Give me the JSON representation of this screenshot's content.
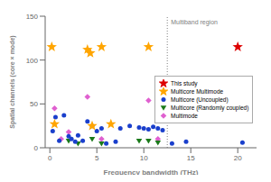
{
  "chart_data": {
    "type": "scatter",
    "xlabel": "Frequency bandwidth (THz)",
    "ylabel": "Spatial channels (core × mode)",
    "xlim": [
      -0.5,
      22
    ],
    "ylim": [
      0,
      150
    ],
    "xticks": [
      0,
      5,
      10,
      15,
      20
    ],
    "yticks": [
      0,
      50,
      100,
      150
    ],
    "grid": false,
    "legend": "right",
    "annotations": [
      {
        "type": "vline",
        "x": 12.5,
        "text": "Multiband region",
        "line_style": "dotted"
      }
    ],
    "series": [
      {
        "name": "This study",
        "color": "#dd0000",
        "marker": "star",
        "x": [
          20
        ],
        "y": [
          115
        ]
      },
      {
        "name": "Multicore Multimode",
        "color": "#ffa500",
        "marker": "star",
        "x": [
          0.2,
          4.0,
          4.3,
          5.5,
          10.5,
          0.5,
          4.5,
          6.5
        ],
        "y": [
          115,
          112,
          108,
          115,
          115,
          27,
          25,
          27
        ]
      },
      {
        "name": "Multicore (Uncoupled)",
        "color": "#1a3fcc",
        "marker": "circle",
        "x": [
          0.3,
          0.6,
          1.0,
          1.5,
          2.0,
          2.3,
          2.7,
          3.0,
          3.5,
          4.0,
          4.5,
          5.0,
          5.5,
          6.0,
          7.0,
          7.5,
          8.5,
          9.5,
          10.0,
          10.5,
          11.0,
          11.5,
          12.0,
          13.0,
          14.5,
          20.5
        ],
        "y": [
          19,
          35,
          8,
          37,
          13,
          10,
          7,
          14,
          8,
          30,
          25,
          19,
          22,
          5,
          7,
          22,
          25,
          23,
          22,
          21,
          24,
          22,
          20,
          5,
          7,
          6
        ]
      },
      {
        "name": "Multicore (Randomly coupled)",
        "color": "#1a7a1a",
        "marker": "triangle_down",
        "x": [
          2.0,
          3.0,
          4.5,
          5.5,
          9.5,
          10.5,
          11.5
        ],
        "y": [
          8,
          5,
          10,
          5,
          8,
          8,
          6
        ]
      },
      {
        "name": "Multimode",
        "color": "#e060d0",
        "marker": "diamond",
        "x": [
          0.5,
          1.2,
          2.0,
          4.0,
          5.5,
          10.5,
          11.5
        ],
        "y": [
          45,
          10,
          18,
          58,
          10,
          54,
          10
        ]
      }
    ]
  }
}
